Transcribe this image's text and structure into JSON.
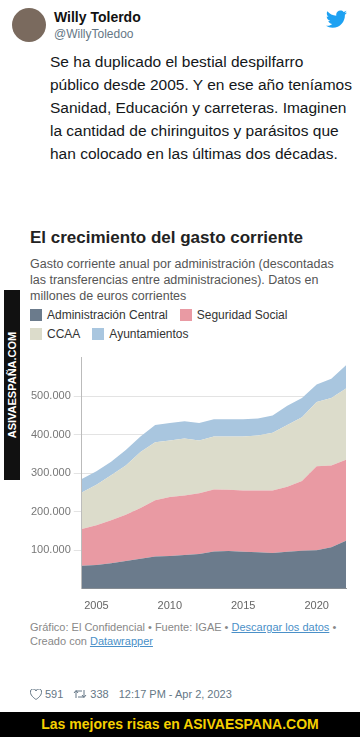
{
  "tweet": {
    "name": "Willy Tolerdo",
    "handle": "@WillyToledoo",
    "text": "Se ha duplicado el bestial despilfarro público desde 2005. Y en ese año teníamos Sanidad, Educación y carreteras. Imaginen la cantidad de chiringuitos y parásitos que han colocado en las últimas dos décadas.",
    "likes": "591",
    "retweets": "338",
    "time": "12:17 PM - Apr 2, 2023"
  },
  "watermark": "ASIVAESPAÑA.COM",
  "banner": "Las mejores risas en ASIVAESPANA.COM",
  "footer": [
    "Gráfico: El Confidencial • Fuente: IGAE • ",
    "Descargar los datos",
    " • Creado con ",
    "Datawrapper"
  ],
  "chart_data": {
    "type": "area",
    "stacked": true,
    "title": "El crecimiento del gasto corriente",
    "subtitle": "Gasto corriente anual por administración (descontadas las transferencias entre administraciones). Datos en millones de euros corrientes",
    "x": [
      2004,
      2005,
      2006,
      2007,
      2008,
      2009,
      2010,
      2011,
      2012,
      2013,
      2014,
      2015,
      2016,
      2017,
      2018,
      2019,
      2020,
      2021,
      2022
    ],
    "series": [
      {
        "name": "Administración Central",
        "color": "#6b7b8c",
        "values": [
          60000,
          62000,
          66000,
          72000,
          78000,
          84000,
          85000,
          88000,
          90000,
          97000,
          98000,
          96000,
          95000,
          93000,
          96000,
          99000,
          100000,
          108000,
          125000
        ]
      },
      {
        "name": "Seguridad Social",
        "color": "#e99aa3",
        "values": [
          95000,
          103000,
          112000,
          120000,
          132000,
          146000,
          153000,
          154000,
          158000,
          161000,
          159000,
          159000,
          160000,
          162000,
          169000,
          181000,
          218000,
          212000,
          210000
        ]
      },
      {
        "name": "CCAA",
        "color": "#dcdccb",
        "values": [
          95000,
          105000,
          117000,
          128000,
          145000,
          150000,
          147000,
          148000,
          137000,
          137000,
          138000,
          140000,
          143000,
          150000,
          160000,
          165000,
          167000,
          175000,
          185000
        ]
      },
      {
        "name": "Ayuntamientos",
        "color": "#a9c6df",
        "values": [
          35000,
          35000,
          35000,
          40000,
          40000,
          45000,
          45000,
          45000,
          45000,
          45000,
          45000,
          45000,
          44000,
          45000,
          50000,
          50000,
          45000,
          50000,
          60000
        ]
      }
    ],
    "xlim": [
      2004,
      2022
    ],
    "xticks": [
      2005,
      2010,
      2015,
      2020
    ],
    "ylim": [
      0,
      600000
    ],
    "yticks": [
      {
        "value": 100000,
        "label": "100.000"
      },
      {
        "value": 200000,
        "label": "200.000"
      },
      {
        "value": 300000,
        "label": "300.000"
      },
      {
        "value": 400000,
        "label": "400.000"
      },
      {
        "value": 500000,
        "label": "500.000"
      }
    ],
    "grid": true,
    "legend": "top"
  }
}
